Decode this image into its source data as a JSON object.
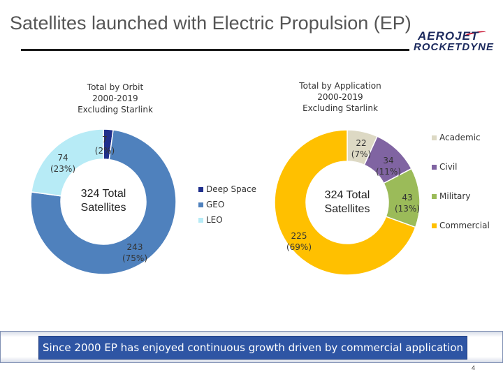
{
  "page": {
    "title": "Satellites launched with Electric Propulsion (EP)",
    "logo_line1": "AEROJET",
    "logo_line2": "ROCKETDYNE",
    "banner": "Since 2000 EP has enjoyed continuous growth driven by commercial application",
    "page_number": "4"
  },
  "chart_data": [
    {
      "type": "pie",
      "donut": true,
      "subtitle_lines": [
        "Total by Orbit",
        "2000-2019",
        "Excluding  Starlink"
      ],
      "center_label_lines": [
        "324 Total",
        "Satellites"
      ],
      "legend_position": "right",
      "slices": [
        {
          "name": "Deep Space",
          "value": 7,
          "percent": "(2%)",
          "color": "#1f2f8c"
        },
        {
          "name": "GEO",
          "value": 243,
          "percent": "(75%)",
          "color": "#4f81bd"
        },
        {
          "name": "LEO",
          "value": 74,
          "percent": "(23%)",
          "color": "#b7ebf6"
        }
      ]
    },
    {
      "type": "pie",
      "donut": true,
      "subtitle_lines": [
        "Total by Application",
        "2000-2019",
        "Excluding Starlink"
      ],
      "center_label_lines": [
        "324 Total",
        "Satellites"
      ],
      "legend_position": "right",
      "slices": [
        {
          "name": "Academic",
          "value": 22,
          "percent": "(7%)",
          "color": "#ddd9c4"
        },
        {
          "name": "Civil",
          "value": 34,
          "percent": "(11%)",
          "color": "#8064a2"
        },
        {
          "name": "Military",
          "value": 43,
          "percent": "(13%)",
          "color": "#9bbb59"
        },
        {
          "name": "Commercial",
          "value": 225,
          "percent": "(69%)",
          "color": "#ffc000"
        }
      ]
    }
  ]
}
